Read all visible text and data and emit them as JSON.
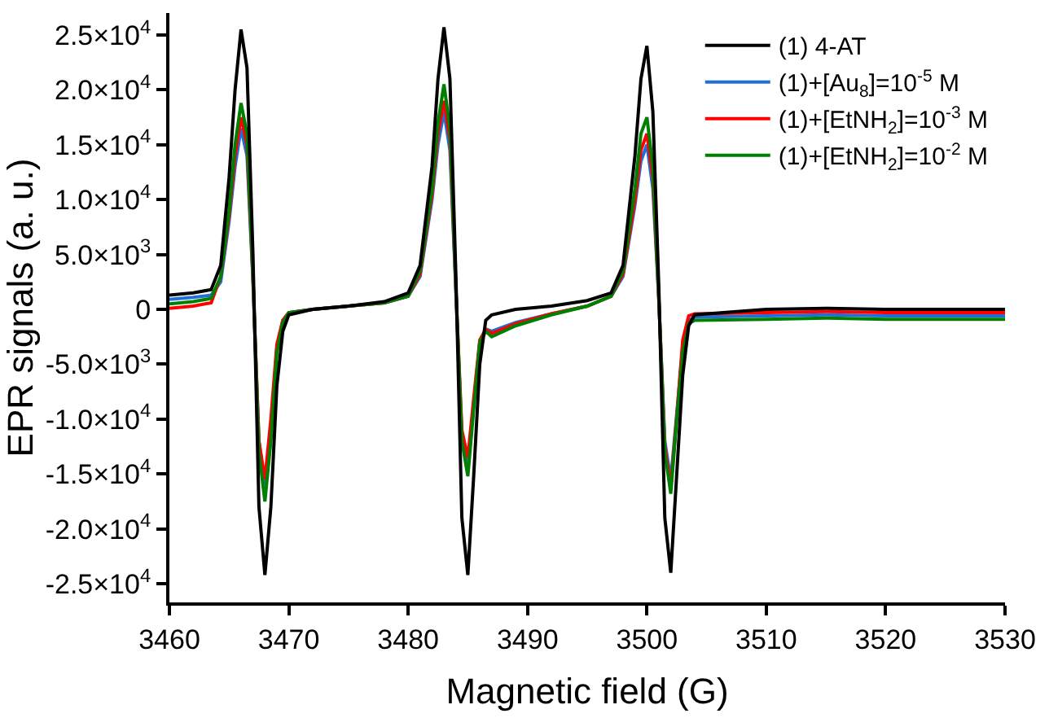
{
  "chart_data": {
    "type": "line",
    "xlabel": "Magnetic field (G)",
    "ylabel": "EPR signals (a. u.)",
    "x": [
      3460,
      3462,
      3463.5,
      3464.3,
      3465,
      3465.5,
      3466,
      3466.5,
      3467,
      3467.5,
      3468,
      3468.5,
      3469,
      3469.5,
      3470,
      3472,
      3475,
      3478,
      3480,
      3481,
      3482,
      3482.5,
      3483,
      3483.5,
      3484,
      3484.5,
      3485,
      3485.5,
      3486,
      3486.5,
      3487,
      3489,
      3492,
      3495,
      3497,
      3498,
      3499,
      3499.5,
      3500,
      3500.5,
      3501,
      3501.5,
      3502,
      3502.5,
      3503,
      3503.5,
      3504,
      3510,
      3515,
      3520,
      3530
    ],
    "series": [
      {
        "name": "(1) 4-AT",
        "color": "#000000",
        "values": [
          1300,
          1500,
          1800,
          4000,
          12000,
          20000,
          25500,
          22000,
          5000,
          -18000,
          -24200,
          -18000,
          -7000,
          -2000,
          -500,
          0,
          300,
          700,
          1500,
          4000,
          13000,
          21000,
          25700,
          21000,
          3000,
          -19000,
          -24200,
          -15000,
          -5000,
          -1000,
          -500,
          0,
          300,
          800,
          1500,
          4000,
          14000,
          21000,
          24000,
          18000,
          2000,
          -19000,
          -24000,
          -15000,
          -6000,
          -1500,
          -500,
          0,
          100,
          0,
          0
        ]
      },
      {
        "name": "(1)+[Au$_{8}$]=10$^{-5}$ M",
        "color": "#1f6fd6",
        "values": [
          900,
          1100,
          1300,
          2500,
          8000,
          13000,
          16500,
          14000,
          2500,
          -12000,
          -16000,
          -11000,
          -3500,
          -1000,
          -300,
          0,
          300,
          600,
          1200,
          3000,
          10000,
          15000,
          18000,
          14500,
          1500,
          -11500,
          -14500,
          -8500,
          -3000,
          -1800,
          -2000,
          -1200,
          -400,
          300,
          1200,
          3000,
          9500,
          13500,
          15000,
          11000,
          800,
          -12000,
          -15500,
          -9500,
          -3500,
          -1000,
          -700,
          -600,
          -500,
          -600,
          -600
        ]
      },
      {
        "name": "(1)+[EtNH$_{2}$]=10$^{-3}$ M",
        "color": "#ff0000",
        "values": [
          100,
          300,
          600,
          3000,
          8500,
          14000,
          17500,
          15000,
          2800,
          -12000,
          -15500,
          -10000,
          -3200,
          -1000,
          -300,
          0,
          300,
          600,
          1200,
          3200,
          10500,
          16000,
          19000,
          15500,
          1800,
          -11000,
          -13500,
          -8000,
          -2800,
          -1800,
          -2200,
          -1300,
          -400,
          300,
          1200,
          3200,
          10000,
          14500,
          16000,
          12000,
          900,
          -12500,
          -16200,
          -9800,
          -2800,
          -600,
          -400,
          -300,
          -200,
          -300,
          -300
        ]
      },
      {
        "name": "(1)+[EtNH$_{2}$]=10$^{-2}$ M",
        "color": "#008000",
        "values": [
          500,
          700,
          1000,
          3000,
          9000,
          15000,
          18800,
          16000,
          3000,
          -13000,
          -17500,
          -12000,
          -4000,
          -1200,
          -300,
          0,
          300,
          600,
          1200,
          3500,
          11000,
          17000,
          20500,
          16500,
          2000,
          -12000,
          -15200,
          -9000,
          -3000,
          -2000,
          -2500,
          -1500,
          -500,
          300,
          1200,
          3500,
          11000,
          16000,
          17500,
          13000,
          1000,
          -13000,
          -16800,
          -10000,
          -4000,
          -1300,
          -1000,
          -900,
          -800,
          -900,
          -900
        ]
      }
    ],
    "xlim": [
      3460,
      3530
    ],
    "xticks": [
      3460,
      3470,
      3480,
      3490,
      3500,
      3510,
      3520,
      3530
    ],
    "ylim": [
      -26700,
      27000
    ],
    "yticks": [
      {
        "value": 25000,
        "label": "2.5×10$^{4}$"
      },
      {
        "value": 20000,
        "label": "2.0×10$^{4}$"
      },
      {
        "value": 15000,
        "label": "1.5×10$^{4}$"
      },
      {
        "value": 10000,
        "label": "1.0×10$^{4}$"
      },
      {
        "value": 5000,
        "label": "5.0×10$^{3}$"
      },
      {
        "value": 0,
        "label": "0"
      },
      {
        "value": -5000,
        "label": "-5.0×10$^{3}$"
      },
      {
        "value": -10000,
        "label": "-1.0×10$^{4}$"
      },
      {
        "value": -15000,
        "label": "-1.5×10$^{4}$"
      },
      {
        "value": -20000,
        "label": "-2.0×10$^{4}$"
      },
      {
        "value": -25000,
        "label": "-2.5×10$^{4}$"
      }
    ],
    "legend": "top right",
    "line_style": "solid",
    "marker": "none"
  }
}
